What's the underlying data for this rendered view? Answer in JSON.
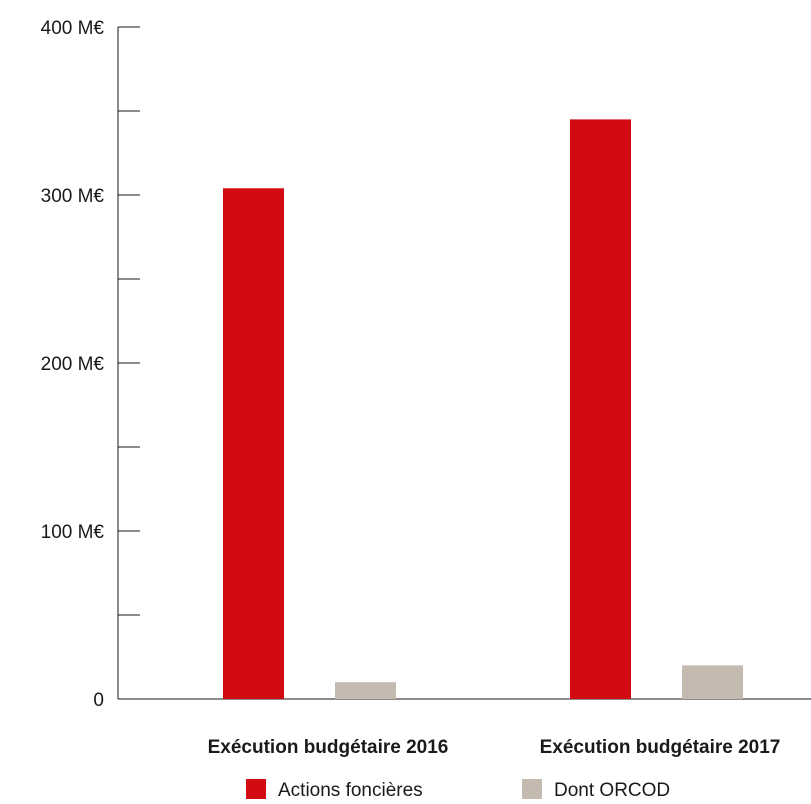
{
  "chart_data": {
    "type": "bar",
    "categories": [
      "Exécution budgétaire 2016",
      "Exécution budgétaire 2017"
    ],
    "series": [
      {
        "name": "Actions foncières",
        "values": [
          304,
          345
        ],
        "color": "#d20a11"
      },
      {
        "name": "Dont ORCOD",
        "values": [
          10,
          20
        ],
        "color": "#c4bab0"
      }
    ],
    "ylim": [
      0,
      400
    ],
    "y_major_ticks": [
      0,
      100,
      200,
      300,
      400
    ],
    "y_tick_labels": [
      "0",
      "100 M€",
      "200 M€",
      "300 M€",
      "400 M€"
    ],
    "y_minor_ticks": [
      50,
      150,
      250,
      350
    ],
    "grid": false,
    "legend_position": "bottom-center",
    "title": "",
    "xlabel": "",
    "ylabel": ""
  }
}
